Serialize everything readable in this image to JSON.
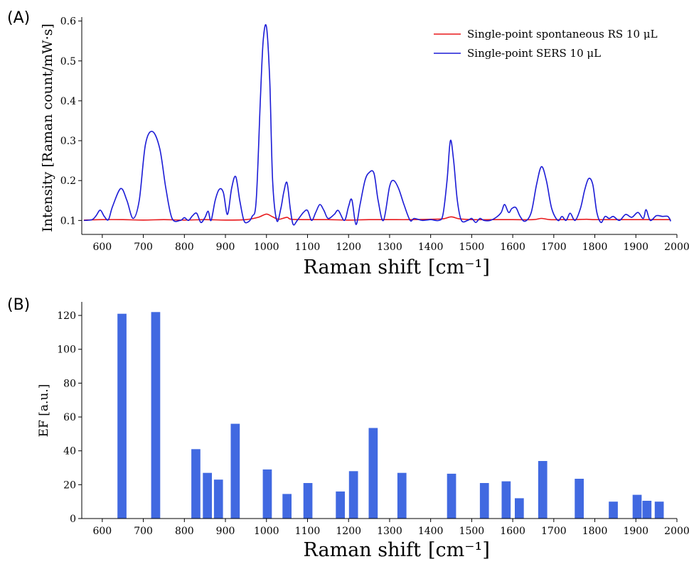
{
  "chart_data": [
    {
      "panel_label": "(A)",
      "type": "line",
      "xlabel": "Raman shift",
      "xunit": "[cm⁻¹]",
      "ylabel": "Intensity [Raman count/mW·s]",
      "xlim": [
        550,
        2000
      ],
      "ylim": [
        0.065,
        0.61
      ],
      "xticks": [
        600,
        700,
        800,
        900,
        1000,
        1100,
        1200,
        1300,
        1400,
        1500,
        1600,
        1700,
        1800,
        1900,
        2000
      ],
      "yticks": [
        0.1,
        0.2,
        0.3,
        0.4,
        0.5,
        0.6
      ],
      "legend_position": "top-right",
      "series": [
        {
          "name": "Single-point spontaneous RS 10 μL",
          "color": "#e8191c",
          "x": [
            555,
            600,
            650,
            700,
            750,
            800,
            850,
            900,
            950,
            980,
            1000,
            1015,
            1030,
            1050,
            1060,
            1100,
            1150,
            1200,
            1250,
            1300,
            1350,
            1400,
            1430,
            1450,
            1470,
            1500,
            1550,
            1600,
            1650,
            1670,
            1690,
            1720,
            1750,
            1780,
            1800,
            1850,
            1900,
            1950,
            1985
          ],
          "y": [
            0.101,
            0.102,
            0.102,
            0.101,
            0.102,
            0.101,
            0.102,
            0.101,
            0.102,
            0.108,
            0.116,
            0.109,
            0.103,
            0.108,
            0.103,
            0.102,
            0.102,
            0.101,
            0.102,
            0.102,
            0.102,
            0.103,
            0.104,
            0.109,
            0.104,
            0.102,
            0.102,
            0.102,
            0.102,
            0.105,
            0.102,
            0.102,
            0.102,
            0.103,
            0.102,
            0.102,
            0.102,
            0.102,
            0.102
          ]
        },
        {
          "name": "Single-point SERS 10 μL",
          "color": "#1b1bd6",
          "x": [
            555,
            575,
            585,
            595,
            605,
            615,
            625,
            645,
            660,
            675,
            690,
            705,
            722,
            740,
            755,
            770,
            790,
            800,
            810,
            820,
            830,
            840,
            850,
            858,
            865,
            875,
            885,
            895,
            905,
            915,
            925,
            935,
            945,
            955,
            965,
            975,
            985,
            992,
            1000,
            1008,
            1015,
            1025,
            1035,
            1042,
            1050,
            1058,
            1065,
            1075,
            1090,
            1100,
            1110,
            1120,
            1130,
            1140,
            1150,
            1165,
            1175,
            1190,
            1200,
            1208,
            1218,
            1228,
            1240,
            1250,
            1262,
            1272,
            1285,
            1300,
            1310,
            1322,
            1335,
            1350,
            1360,
            1380,
            1400,
            1420,
            1430,
            1440,
            1448,
            1456,
            1465,
            1475,
            1490,
            1500,
            1510,
            1520,
            1530,
            1545,
            1560,
            1572,
            1580,
            1590,
            1598,
            1608,
            1618,
            1630,
            1645,
            1658,
            1670,
            1682,
            1695,
            1710,
            1720,
            1730,
            1740,
            1752,
            1765,
            1775,
            1785,
            1795,
            1805,
            1815,
            1825,
            1835,
            1845,
            1860,
            1875,
            1890,
            1905,
            1918,
            1925,
            1935,
            1950,
            1965,
            1978,
            1985
          ],
          "y": [
            0.1,
            0.102,
            0.112,
            0.126,
            0.11,
            0.102,
            0.135,
            0.18,
            0.15,
            0.105,
            0.15,
            0.29,
            0.323,
            0.28,
            0.18,
            0.105,
            0.1,
            0.107,
            0.1,
            0.112,
            0.118,
            0.095,
            0.107,
            0.123,
            0.1,
            0.15,
            0.178,
            0.17,
            0.115,
            0.18,
            0.21,
            0.15,
            0.1,
            0.096,
            0.11,
            0.15,
            0.4,
            0.55,
            0.585,
            0.45,
            0.2,
            0.1,
            0.13,
            0.17,
            0.195,
            0.13,
            0.09,
            0.1,
            0.12,
            0.125,
            0.1,
            0.12,
            0.14,
            0.125,
            0.105,
            0.115,
            0.125,
            0.1,
            0.135,
            0.152,
            0.09,
            0.14,
            0.2,
            0.22,
            0.218,
            0.15,
            0.1,
            0.185,
            0.2,
            0.18,
            0.14,
            0.1,
            0.105,
            0.1,
            0.102,
            0.1,
            0.115,
            0.2,
            0.3,
            0.25,
            0.15,
            0.1,
            0.1,
            0.105,
            0.095,
            0.105,
            0.1,
            0.1,
            0.108,
            0.12,
            0.14,
            0.12,
            0.13,
            0.132,
            0.11,
            0.098,
            0.12,
            0.19,
            0.235,
            0.2,
            0.13,
            0.1,
            0.11,
            0.1,
            0.118,
            0.1,
            0.13,
            0.175,
            0.205,
            0.19,
            0.12,
            0.095,
            0.11,
            0.105,
            0.11,
            0.1,
            0.115,
            0.108,
            0.12,
            0.105,
            0.127,
            0.1,
            0.112,
            0.11,
            0.11,
            0.098
          ]
        }
      ]
    },
    {
      "panel_label": "(B)",
      "type": "bar",
      "xlabel": "Raman shift",
      "xunit": "[cm⁻¹]",
      "ylabel": "EF [a.u.]",
      "xlim": [
        550,
        2000
      ],
      "ylim": [
        0,
        128
      ],
      "xticks": [
        600,
        700,
        800,
        900,
        1000,
        1100,
        1200,
        1300,
        1400,
        1500,
        1600,
        1700,
        1800,
        1900,
        2000
      ],
      "yticks": [
        0,
        20,
        40,
        60,
        80,
        100,
        120
      ],
      "bar_color": "#4169e1",
      "bar_width_units": 22,
      "x": [
        648,
        730,
        828,
        856,
        883,
        924,
        1002,
        1050,
        1101,
        1180,
        1212,
        1260,
        1330,
        1451,
        1531,
        1584,
        1616,
        1673,
        1762,
        1845,
        1903,
        1927,
        1957
      ],
      "values": [
        121,
        122,
        41,
        27,
        23,
        56,
        29,
        14.5,
        21,
        16,
        28,
        53.5,
        27,
        26.5,
        21,
        22,
        12,
        34,
        23.5,
        10,
        14,
        10.5,
        10
      ]
    }
  ]
}
